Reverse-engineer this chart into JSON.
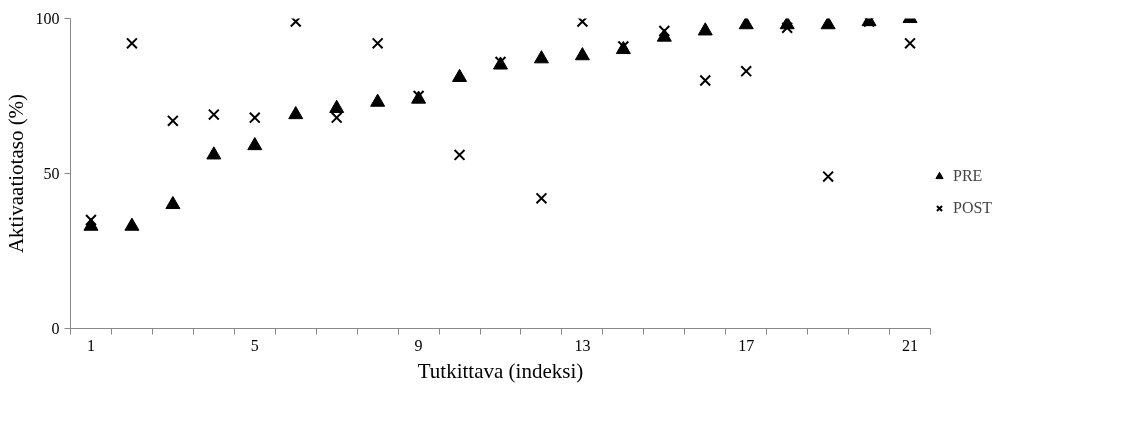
{
  "chart_data": {
    "type": "scatter",
    "xlabel": "Tutkittava (indeksi)",
    "ylabel": "Aktivaatiotaso (%)",
    "categories": [
      "1",
      null,
      null,
      null,
      "5",
      null,
      null,
      null,
      "9",
      null,
      null,
      null,
      "13",
      null,
      null,
      null,
      "17",
      null,
      null,
      null,
      "21"
    ],
    "ylim": [
      0,
      100
    ],
    "yticks": [
      0,
      50,
      100
    ],
    "legend": "right",
    "series": [
      {
        "name": "PRE",
        "color": "#000000",
        "marker": "triangle",
        "values": [
          33,
          33,
          40,
          56,
          59,
          69,
          71,
          73,
          74,
          81,
          85,
          87,
          88,
          90,
          94,
          96,
          98,
          98,
          98,
          99,
          100
        ]
      },
      {
        "name": "POST",
        "color": "#000000",
        "marker": "cross",
        "values": [
          35,
          92,
          67,
          69,
          68,
          99,
          68,
          92,
          75,
          56,
          86,
          42,
          99,
          91,
          96,
          80,
          83,
          97,
          49,
          99,
          92
        ]
      }
    ]
  }
}
